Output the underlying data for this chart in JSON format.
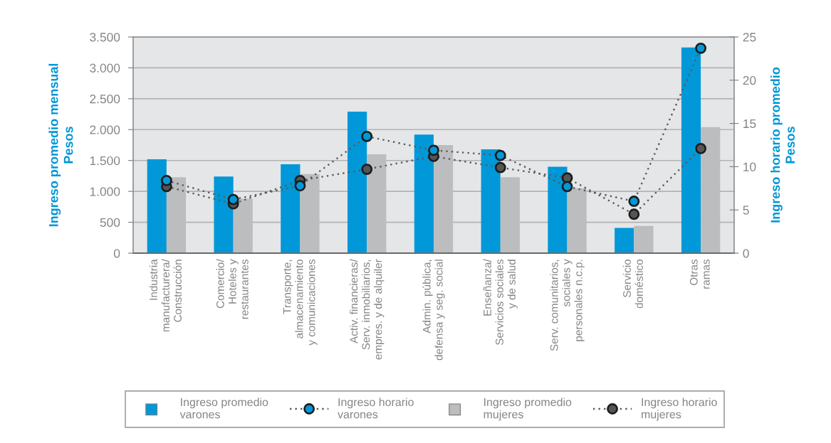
{
  "chart_data": {
    "type": "bar",
    "categories": [
      "Industria\nmanufacturera/\nConstrucción",
      "Comercio/\nHoteles y\nrestaurantes",
      "Transporte,\nalmacenamiento\ny comunicaciones",
      "Activ. financieras/\nServ. inmobiliarios,\nempres. y de alquiler",
      "Admin. pública,\ndefensa y seg. social",
      "Enseñanza/\nServicios sociales\ny de salud",
      "Serv. comunitarios,\nsociales y\npersonales n.c.p.",
      "Servicio\ndoméstico",
      "Otras\nramas"
    ],
    "ylabel": "Ingreso promedio mensual\nPesos",
    "y2label": "Ingreso horario promedio\nPesos",
    "ylim": [
      0,
      3500
    ],
    "yticks": [
      0,
      500,
      {
        "value": 1000,
        "label": "1.000"
      },
      {
        "value": 1500,
        "label": "1.500"
      },
      {
        "value": 2000,
        "label": "2.000"
      },
      {
        "value": 2500,
        "label": "2.500"
      },
      {
        "value": 3000,
        "label": "3.000"
      },
      {
        "value": 3500,
        "label": "3.500"
      }
    ],
    "y2lim": [
      0,
      25
    ],
    "y2ticks": [
      0,
      5,
      10,
      15,
      20,
      25
    ],
    "grid": "y",
    "legend": "bottom",
    "series": [
      {
        "name": "Ingreso promedio\nvarones",
        "color": "#0098d8",
        "values": [
          1520,
          1240,
          1440,
          2290,
          1920,
          1680,
          1400,
          410,
          3330
        ]
      },
      {
        "name": "Ingreso horario\nvarones",
        "type": "line",
        "axis": "y2",
        "marker": "circle",
        "line_style": "dotted",
        "color": "#0098d8",
        "values": [
          8.4,
          6.2,
          7.8,
          13.5,
          11.9,
          11.3,
          7.7,
          6.0,
          23.7
        ]
      },
      {
        "name": "Ingreso promedio\nmujeres",
        "color": "#bcbdbf",
        "values": [
          1230,
          880,
          1280,
          1600,
          1750,
          1230,
          1050,
          440,
          2040
        ]
      },
      {
        "name": "Ingreso horario\nmujeres",
        "type": "line",
        "axis": "y2",
        "marker": "circle",
        "line_style": "dotted",
        "color": "#555555",
        "values": [
          7.7,
          5.7,
          8.4,
          9.7,
          11.2,
          9.9,
          8.7,
          4.5,
          12.1
        ]
      }
    ]
  }
}
